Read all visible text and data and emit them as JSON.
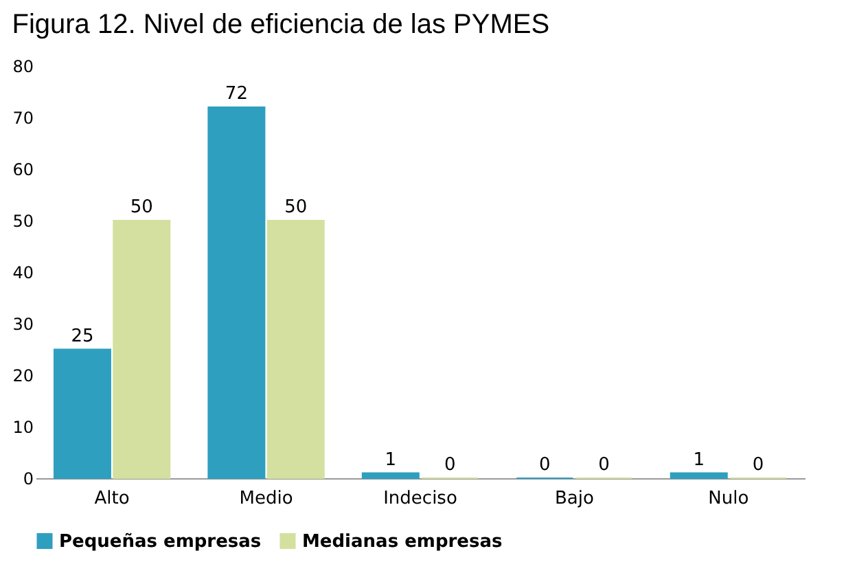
{
  "chart_data": {
    "type": "bar",
    "title": "Figura 12. Nivel de eficiencia de las PYMES",
    "categories": [
      "Alto",
      "Medio",
      "Indeciso",
      "Bajo",
      "Nulo"
    ],
    "series": [
      {
        "name": "Pequeñas empresas",
        "color": "#2f9fc0",
        "values": [
          25,
          72,
          1,
          0,
          1
        ]
      },
      {
        "name": "Medianas empresas",
        "color": "#d3e09f",
        "values": [
          50,
          50,
          0,
          0,
          0
        ]
      }
    ],
    "ylim": [
      0,
      80
    ],
    "yticks": [
      0,
      10,
      20,
      30,
      40,
      50,
      60,
      70,
      80
    ],
    "grid": false,
    "legend": "bottom",
    "data_labels": true
  }
}
